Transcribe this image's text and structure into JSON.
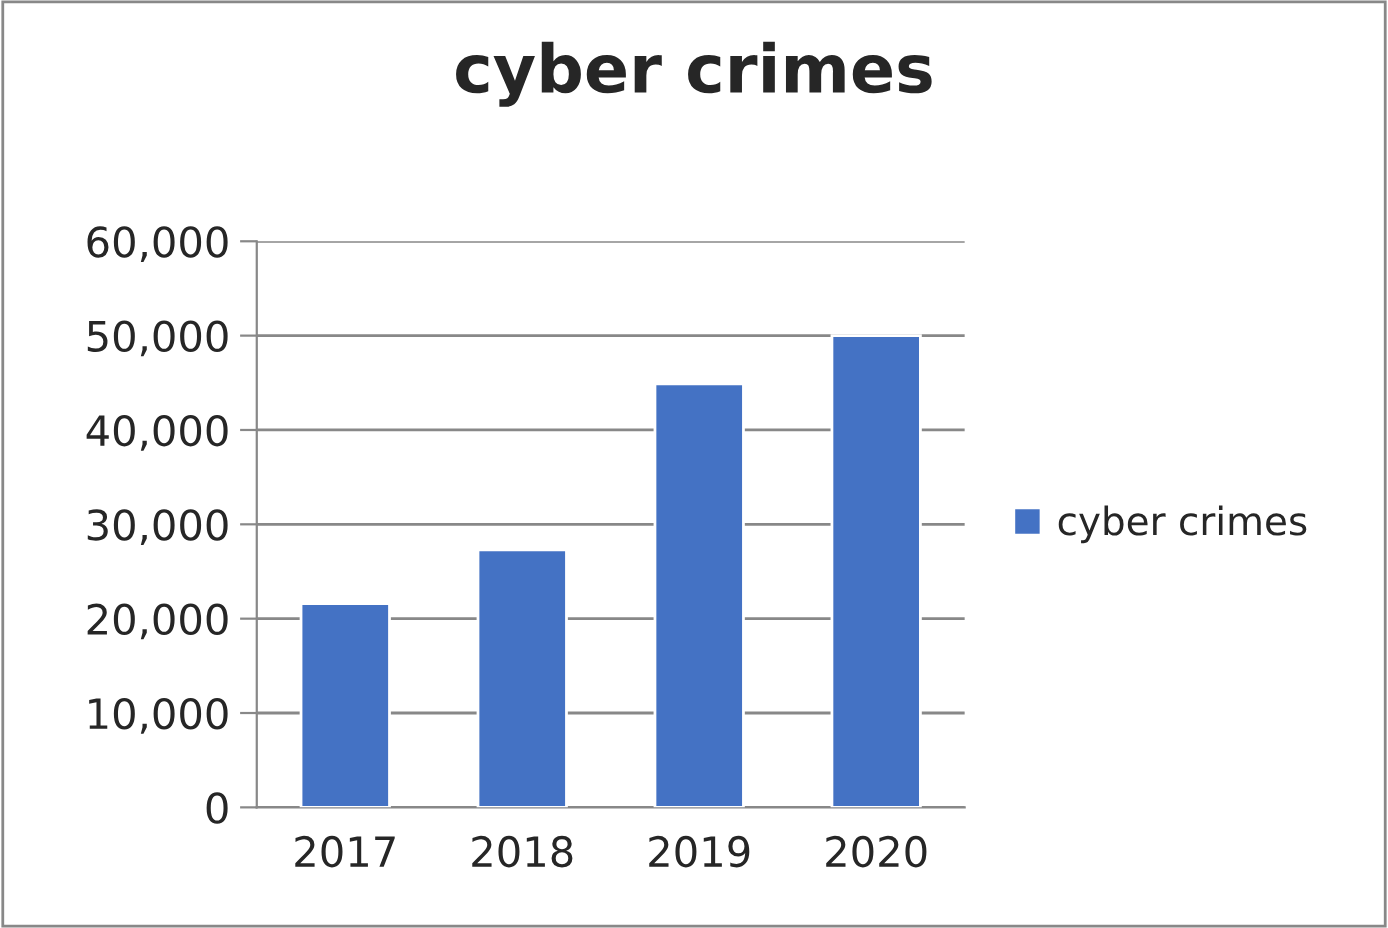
{
  "chart_data": {
    "type": "bar",
    "title": "cyber crimes",
    "categories": [
      "2017",
      "2018",
      "2019",
      "2020"
    ],
    "series": [
      {
        "name": "cyber crimes",
        "color": "#4472c4",
        "values": [
          21600,
          27300,
          44900,
          50000
        ]
      }
    ],
    "ylim": [
      0,
      60000
    ],
    "yticks": [
      {
        "value": 0,
        "label": "0"
      },
      {
        "value": 10000,
        "label": "10,000"
      },
      {
        "value": 20000,
        "label": "20,000"
      },
      {
        "value": 30000,
        "label": "30,000"
      },
      {
        "value": 40000,
        "label": "40,000"
      },
      {
        "value": 50000,
        "label": "50,000"
      },
      {
        "value": 60000,
        "label": "60,000"
      }
    ],
    "grid": "y",
    "legend": "right"
  }
}
